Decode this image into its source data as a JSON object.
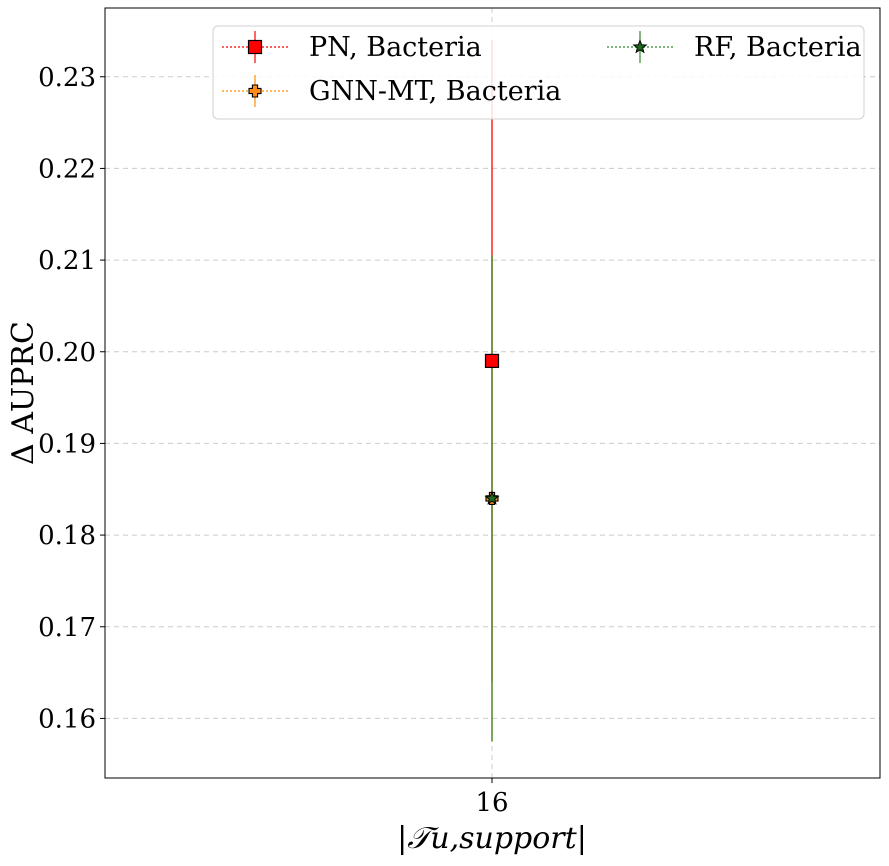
{
  "chart_data": {
    "type": "scatter",
    "xlabel": "|𝒯u,support|",
    "ylabel": "Δ AUPRC",
    "x_categories": [
      "16"
    ],
    "y_ticks": [
      "0.16",
      "0.17",
      "0.18",
      "0.19",
      "0.20",
      "0.21",
      "0.22",
      "0.23"
    ],
    "ylim": [
      0.1535,
      0.2375
    ],
    "grid": true,
    "legend_position": "upper-right",
    "legend_columns": 2,
    "series": [
      {
        "name": "PN, Bacteria",
        "x": "16",
        "y": 0.199,
        "yerr_low": 0.164,
        "yerr_high": 0.234,
        "marker": "square",
        "color": "#ff0000",
        "line_color": "#ff0000"
      },
      {
        "name": "GNN-MT, Bacteria",
        "x": "16",
        "y": 0.184,
        "yerr_low": 0.1575,
        "yerr_high": 0.2105,
        "marker": "plus",
        "color": "#ff8c1a",
        "line_color": "#ff8c00"
      },
      {
        "name": "RF, Bacteria",
        "x": "16",
        "y": 0.184,
        "yerr_low": 0.1575,
        "yerr_high": 0.2105,
        "marker": "star",
        "color": "#1e6b1e",
        "line_color": "#2e8b2e"
      }
    ]
  }
}
